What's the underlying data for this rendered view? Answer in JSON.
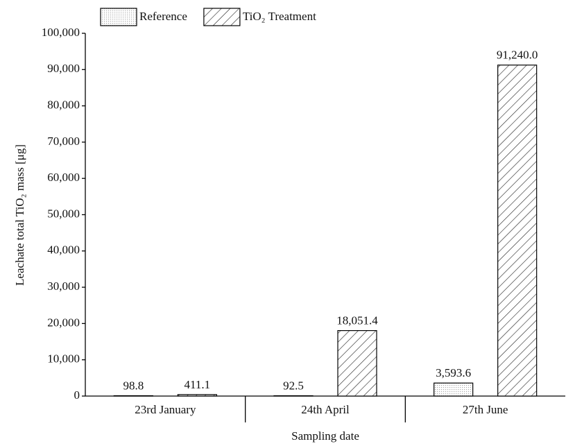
{
  "chart_data": {
    "type": "bar",
    "x_label": "Sampling date",
    "y_label": "Leachate total TiO₂ mass [μg]",
    "categories": [
      "23rd January",
      "24th April",
      "27th June"
    ],
    "series": [
      {
        "name": "Reference",
        "color": "#ffffff",
        "pattern": "dots",
        "values": [
          98.8,
          92.5,
          3593.6
        ],
        "value_labels": [
          "98.8",
          "92.5",
          "3,593.6"
        ]
      },
      {
        "name": "TiO₂ Treatment",
        "color": "#ffffff",
        "pattern": "diagonal",
        "values": [
          411.1,
          18051.4,
          91240.0
        ],
        "value_labels": [
          "411.1",
          "18,051.4",
          "91,240.0"
        ]
      }
    ],
    "ylim": [
      0,
      100000
    ],
    "yticks": [
      0,
      {
        "value": 10000,
        "label": "10,000"
      },
      {
        "value": 20000,
        "label": "20,000"
      },
      {
        "value": 30000,
        "label": "30,000"
      },
      {
        "value": 40000,
        "label": "40,000"
      },
      {
        "value": 50000,
        "label": "50,000"
      },
      {
        "value": 60000,
        "label": "60,000"
      },
      {
        "value": 70000,
        "label": "70,000"
      },
      {
        "value": 80000,
        "label": "80,000"
      },
      {
        "value": 90000,
        "label": "90,000"
      },
      {
        "value": 100000,
        "label": "100,000"
      }
    ],
    "legend": "top-left",
    "grid": false
  }
}
